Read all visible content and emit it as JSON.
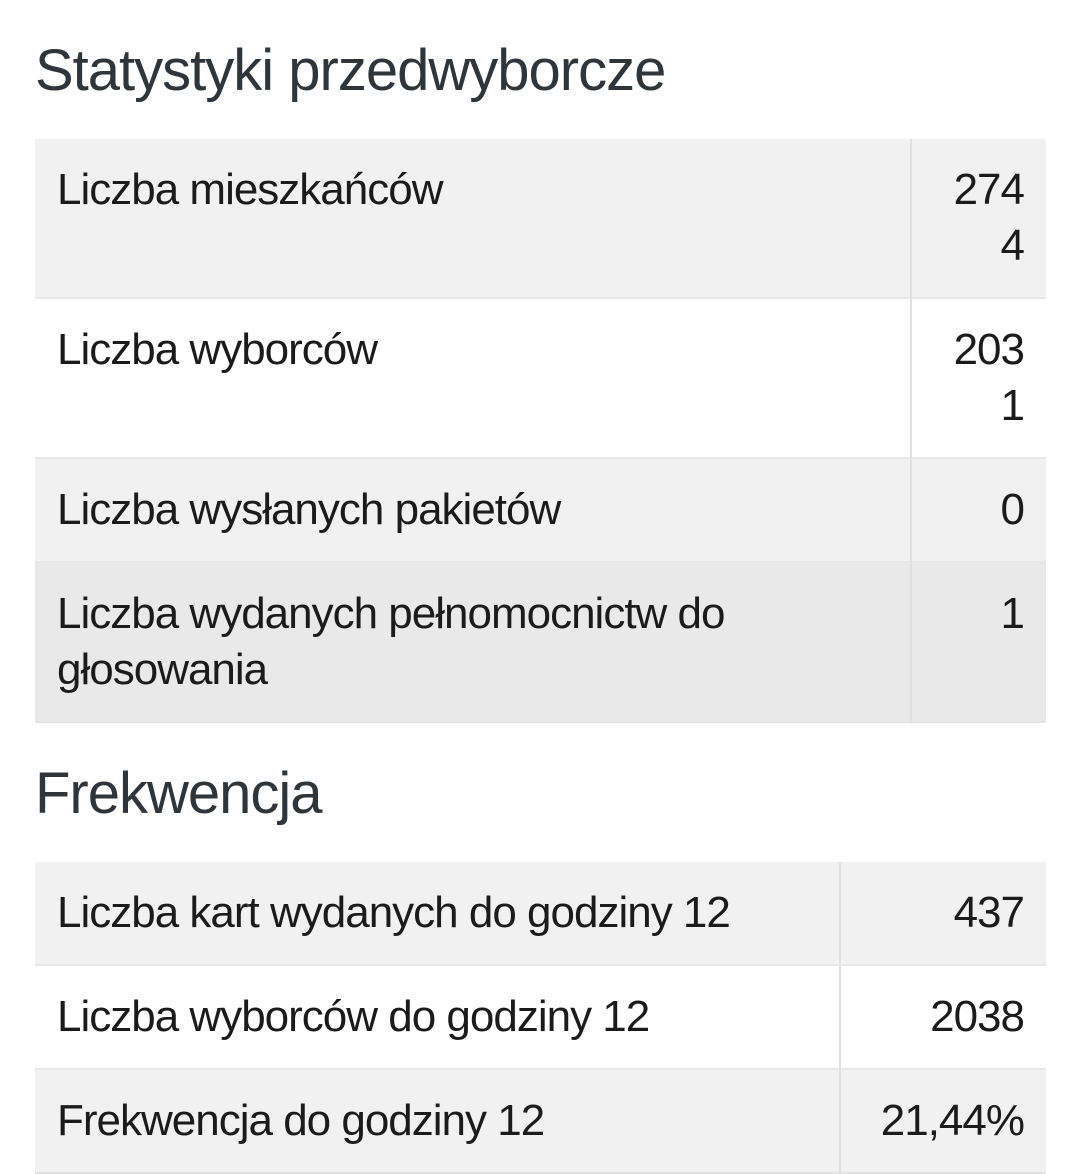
{
  "page": {
    "language": "pl",
    "kind": "election-statistics"
  },
  "colors": {
    "background": "#ffffff",
    "heading_text": "#2f353b",
    "body_text": "#1b1b1b",
    "row_stripe": "#f1f1f1",
    "row_highlight": "#e9e9e9",
    "row_plain": "#ffffff",
    "table_border": "#e4e4e4"
  },
  "sections": [
    {
      "title": "Statystyki przedwyborcze",
      "rows": [
        {
          "label": "Liczba mieszkańców",
          "value": "2744"
        },
        {
          "label": "Liczba wyborców",
          "value": "2031"
        },
        {
          "label": "Liczba wysłanych pakietów",
          "value": "0"
        },
        {
          "label": "Liczba wydanych pełnomocnictw do głosowania",
          "value": "1"
        }
      ]
    },
    {
      "title": "Frekwencja",
      "rows": [
        {
          "label": "Liczba kart wydanych do godziny 12",
          "value": "437"
        },
        {
          "label": "Liczba wyborców do godziny 12",
          "value": "2038"
        },
        {
          "label": "Frekwencja do godziny 12",
          "value": "21,44%"
        }
      ]
    }
  ]
}
